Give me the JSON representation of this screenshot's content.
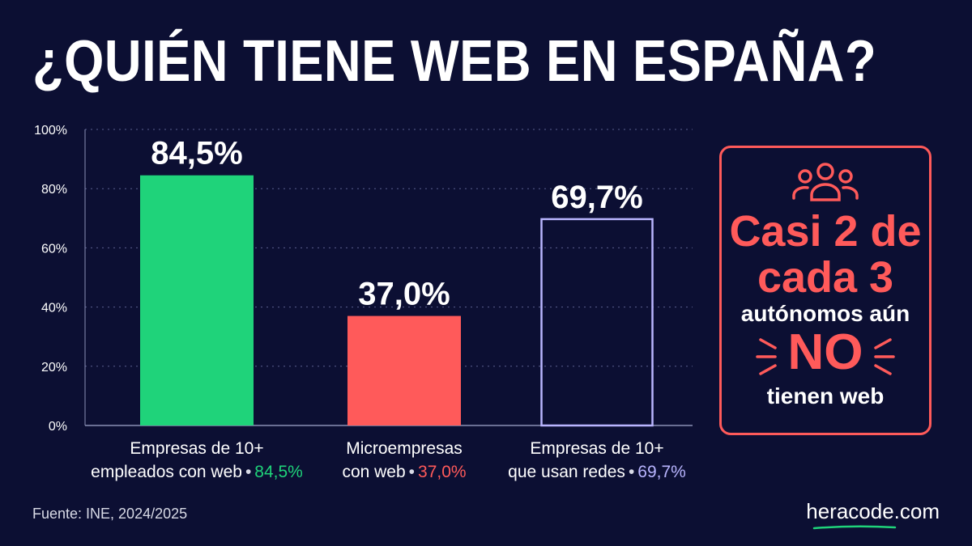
{
  "title": "¿QUIÉN TIENE WEB EN ESPAÑA?",
  "chart_data": {
    "type": "bar",
    "categories": [
      "Empresas de 10+ empleados con web",
      "Microempresas con web",
      "Empresas de 10+ que usan redes"
    ],
    "values": [
      84.5,
      37.0,
      69.7
    ],
    "value_labels": [
      "84,5%",
      "37,0%",
      "69,7%"
    ],
    "category_lines": [
      [
        "Empresas de 10+",
        "empleados con web"
      ],
      [
        "Microempresas",
        "con web"
      ],
      [
        "Empresas de 10+",
        "que usan redes"
      ]
    ],
    "bar_styles": [
      "filled",
      "filled",
      "outline"
    ],
    "colors": [
      "#1fd37a",
      "#ff5a5a",
      "#b9b5ff"
    ],
    "yticks": [
      "0%",
      "20%",
      "40%",
      "60%",
      "80%",
      "100%"
    ],
    "ylim": [
      0,
      100
    ],
    "grid": true,
    "xlabel": "",
    "ylabel": ""
  },
  "callout": {
    "icon": "people-icon",
    "line1": "Casi 2 de",
    "line2": "cada 3",
    "line3": "autónomos aún",
    "line4": "NO",
    "line5": "tienen web"
  },
  "source": "Fuente: INE, 2024/2025",
  "brand": "heracode.com",
  "colors": {
    "background": "#0c0f33",
    "accent_red": "#ff5a5a",
    "accent_green": "#1fd37a",
    "accent_purple": "#b9b5ff"
  }
}
